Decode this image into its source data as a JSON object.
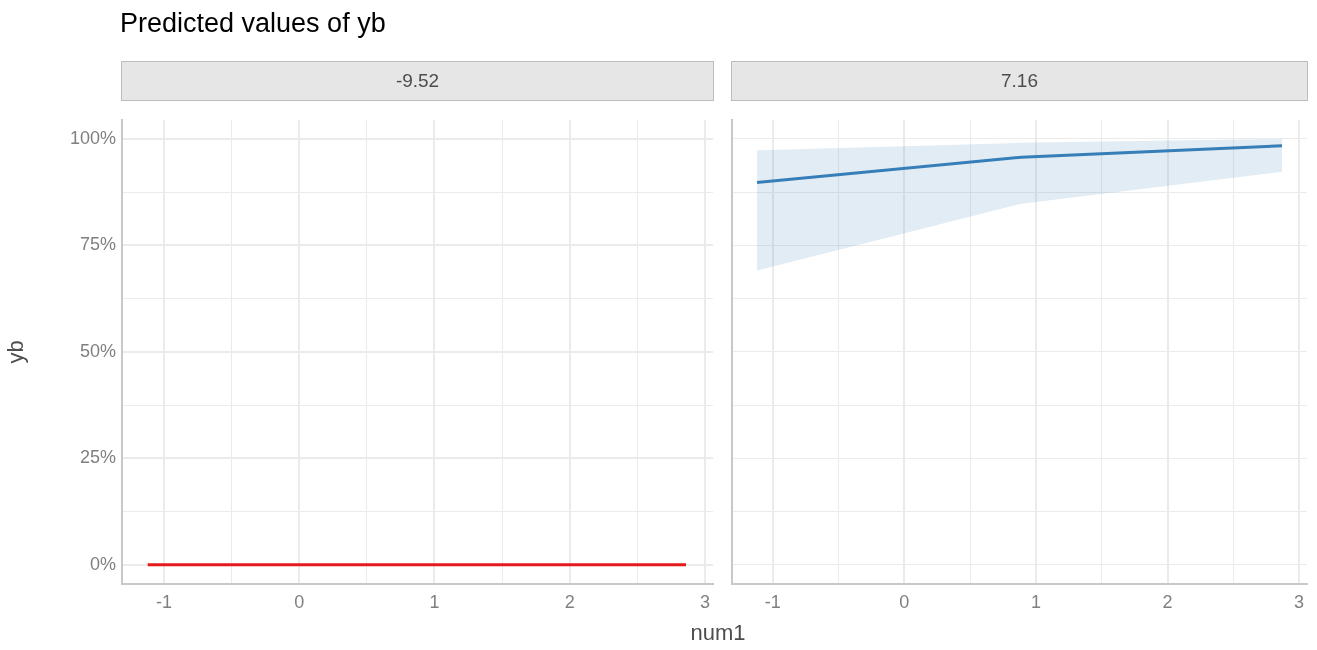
{
  "chart_data": [
    {
      "type": "line",
      "title": "Predicted values of yb",
      "subtitle": "-9.52",
      "xlabel": "num1",
      "ylabel": "yb",
      "xlim": [
        -1.31,
        3.06
      ],
      "xticks": [
        {
          "value": -1,
          "label": "-1"
        },
        {
          "value": -0.5,
          "label": null
        },
        0,
        {
          "value": 0.5,
          "label": null
        },
        1,
        {
          "value": 1.5,
          "label": null
        },
        2,
        {
          "value": 2.5,
          "label": null
        },
        3
      ],
      "ylim": [
        -4.5,
        104.5
      ],
      "yticks": [
        {
          "value": 0,
          "label": "0%"
        },
        {
          "value": 12.5,
          "label": null
        },
        {
          "value": 25,
          "label": "25%"
        },
        {
          "value": 37.5,
          "label": null
        },
        {
          "value": 50,
          "label": "50%"
        },
        {
          "value": 62.5,
          "label": null
        },
        {
          "value": 75,
          "label": "75%"
        },
        {
          "value": 87.5,
          "label": null
        },
        {
          "value": 100,
          "label": "100%"
        }
      ],
      "grid": true,
      "x": [
        -1.12,
        0.89,
        2.86
      ],
      "series": [
        {
          "color": "#e41a1c",
          "values": [
            0,
            0,
            0
          ]
        }
      ]
    },
    {
      "type": "line",
      "subtitle": "7.16",
      "xlim": [
        -1.31,
        3.06
      ],
      "xticks": [
        {
          "value": -1,
          "label": "-1"
        },
        {
          "value": -0.5,
          "label": null
        },
        0,
        {
          "value": 0.5,
          "label": null
        },
        1,
        {
          "value": 1.5,
          "label": null
        },
        2,
        {
          "value": 2.5,
          "label": null
        },
        3
      ],
      "ylim": [
        -4.5,
        104.5
      ],
      "yticks": [
        {
          "value": 0,
          "label": null
        },
        {
          "value": 12.5,
          "label": null
        },
        {
          "value": 25,
          "label": null
        },
        {
          "value": 37.5,
          "label": null
        },
        {
          "value": 50,
          "label": null
        },
        {
          "value": 62.5,
          "label": null
        },
        {
          "value": 75,
          "label": null
        },
        {
          "value": 87.5,
          "label": null
        },
        {
          "value": 100,
          "label": null
        }
      ],
      "grid": true,
      "tick_labels": "x",
      "x": [
        -1.12,
        0.89,
        2.87
      ],
      "series": [
        {
          "color": "#377eb8",
          "values": [
            89.8,
            95.7,
            98.4
          ],
          "lower": [
            69.1,
            84.8,
            92.3
          ],
          "upper": [
            97.3,
            99.1,
            100
          ]
        }
      ]
    }
  ]
}
